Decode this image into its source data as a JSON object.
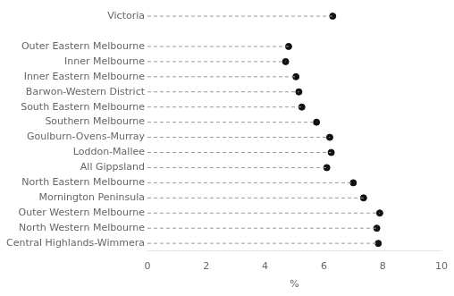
{
  "chart_data": {
    "type": "dot",
    "categories": [
      "Victoria",
      null,
      "Outer Eastern Melbourne",
      "Inner Melbourne",
      "Inner Eastern Melbourne",
      "Barwon-Western District",
      "South Eastern Melbourne",
      "Southern Melbourne",
      "Goulburn-Ovens-Murray",
      "Loddon-Mallee",
      "All Gippsland",
      "North Eastern Melbourne",
      "Mornington Peninsula",
      "Outer Western Melbourne",
      "North Western Melbourne",
      "Central Highlands-Wimmera"
    ],
    "series": [
      {
        "type": "stem",
        "line_style": "dashed",
        "color": "#999999",
        "values": [
          6.3,
          null,
          4.8,
          4.7,
          5.05,
          5.15,
          5.25,
          5.75,
          6.2,
          6.25,
          6.1,
          7.0,
          7.35,
          7.9,
          7.8,
          7.85
        ]
      },
      {
        "type": "scatter",
        "marker": "circle",
        "color": "#111111",
        "values": [
          6.3,
          null,
          4.8,
          4.7,
          5.05,
          5.15,
          5.25,
          5.75,
          6.2,
          6.25,
          6.1,
          7.0,
          7.35,
          7.9,
          7.8,
          7.85
        ]
      }
    ],
    "xlabel": "%",
    "xlim": [
      0,
      10
    ],
    "xticks": [
      0,
      2,
      4,
      6,
      8,
      10
    ],
    "orientation": "horizontal",
    "grid": false
  }
}
